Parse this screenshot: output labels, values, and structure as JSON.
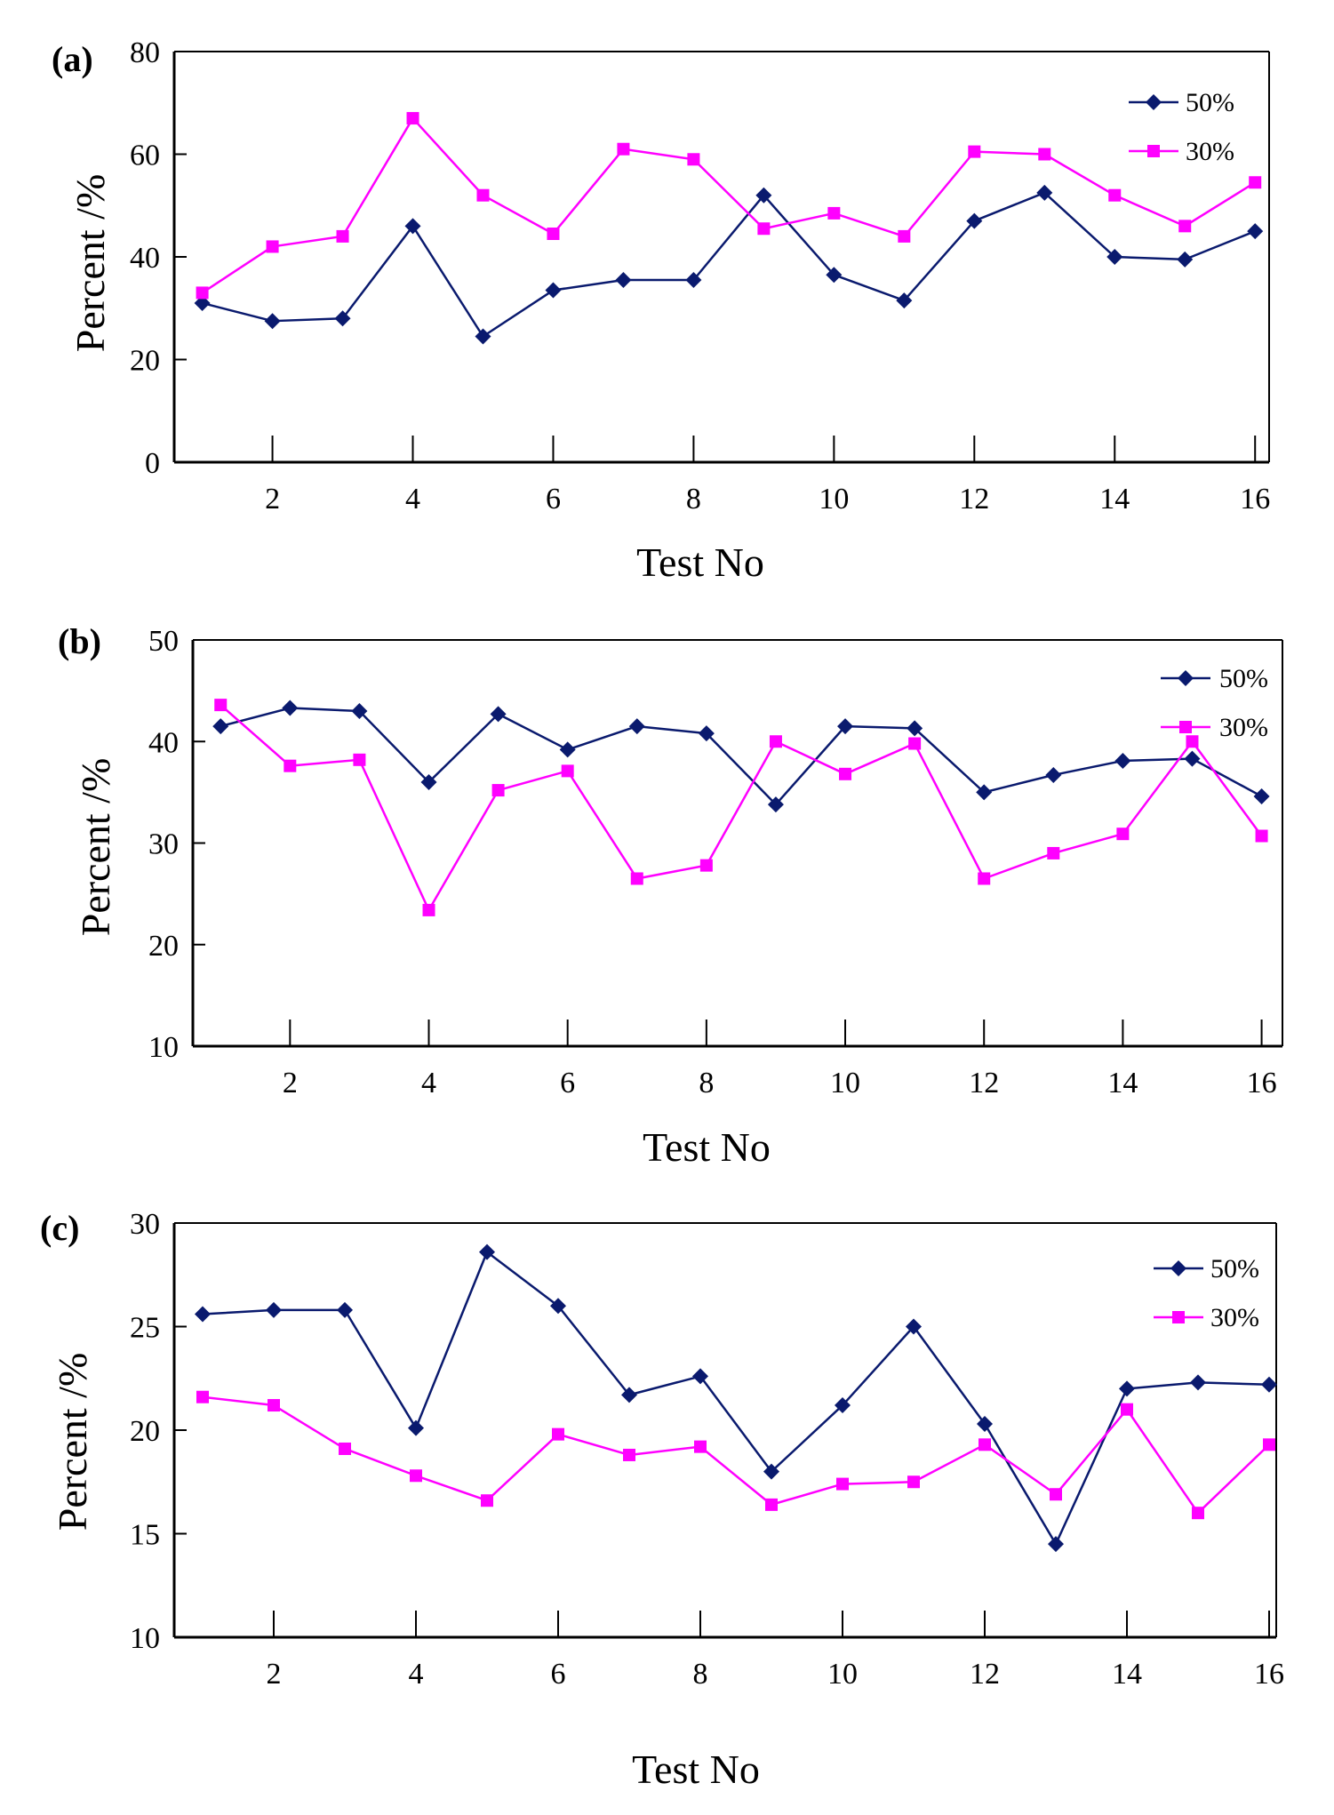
{
  "colors": {
    "series_50": "#0a1a6e",
    "series_30": "#ff00ff",
    "axis": "#000000"
  },
  "chart_data": [
    {
      "type": "line",
      "panel_label": "(a)",
      "xlabel": "Test No",
      "ylabel": "Percent /%",
      "xlim": [
        0.6,
        16.2
      ],
      "ylim": [
        0,
        80
      ],
      "xticks": [
        2,
        4,
        6,
        8,
        10,
        12,
        14,
        16
      ],
      "xtick_labels": [
        "2",
        "4",
        "6",
        "8",
        "10",
        "12",
        "14",
        "16"
      ],
      "yticks": [
        0,
        20,
        40,
        60,
        80
      ],
      "ytick_labels": [
        "0",
        "20",
        "40",
        "60",
        "80"
      ],
      "x": [
        1,
        2,
        3,
        4,
        5,
        6,
        7,
        8,
        9,
        10,
        11,
        12,
        13,
        14,
        15,
        16
      ],
      "series": [
        {
          "name": "50%",
          "marker": "diamond",
          "values": [
            31,
            27.5,
            28,
            46,
            24.5,
            33.5,
            35.5,
            35.5,
            52,
            36.5,
            31.5,
            47,
            52.5,
            40,
            39.5,
            45
          ]
        },
        {
          "name": "30%",
          "marker": "square",
          "values": [
            33,
            42,
            44,
            67,
            52,
            44.5,
            61,
            59,
            45.5,
            48.5,
            44,
            60.5,
            60,
            52,
            46,
            54.5
          ]
        }
      ],
      "legend": {
        "position": "top-right",
        "entries": [
          "50%",
          "30%"
        ]
      }
    },
    {
      "type": "line",
      "panel_label": "(b)",
      "xlabel": "Test No",
      "ylabel": "Percent /%",
      "xlim": [
        0.6,
        16.3
      ],
      "ylim": [
        10,
        50
      ],
      "xticks": [
        2,
        4,
        6,
        8,
        10,
        12,
        14,
        16
      ],
      "xtick_labels": [
        "2",
        "4",
        "6",
        "8",
        "10",
        "12",
        "14",
        "16"
      ],
      "yticks": [
        10,
        20,
        30,
        40,
        50
      ],
      "ytick_labels": [
        "10",
        "20",
        "30",
        "40",
        "50"
      ],
      "x": [
        1,
        2,
        3,
        4,
        5,
        6,
        7,
        8,
        9,
        10,
        11,
        12,
        13,
        14,
        15,
        16
      ],
      "series": [
        {
          "name": "50%",
          "marker": "diamond",
          "values": [
            41.5,
            43.3,
            43,
            36,
            42.7,
            39.2,
            41.5,
            40.8,
            33.8,
            41.5,
            41.3,
            35,
            36.7,
            38.1,
            38.3,
            34.6
          ]
        },
        {
          "name": "30%",
          "marker": "square",
          "values": [
            43.6,
            37.6,
            38.2,
            23.4,
            35.2,
            37.1,
            26.5,
            27.8,
            40,
            36.8,
            39.8,
            26.5,
            29,
            30.9,
            40,
            30.7
          ]
        }
      ],
      "legend": {
        "position": "top-right",
        "entries": [
          "50%",
          "30%"
        ]
      }
    },
    {
      "type": "line",
      "panel_label": "(c)",
      "xlabel": "Test No",
      "ylabel": "Percent /%",
      "xlim": [
        0.6,
        16.1
      ],
      "ylim": [
        10,
        30
      ],
      "xticks": [
        2,
        4,
        6,
        8,
        10,
        12,
        14,
        16
      ],
      "xtick_labels": [
        "2",
        "4",
        "6",
        "8",
        "10",
        "12",
        "14",
        "16"
      ],
      "yticks": [
        10,
        15,
        20,
        25,
        30
      ],
      "ytick_labels": [
        "10",
        "15",
        "20",
        "25",
        "30"
      ],
      "x": [
        1,
        2,
        3,
        4,
        5,
        6,
        7,
        8,
        9,
        10,
        11,
        12,
        13,
        14,
        15,
        16
      ],
      "series": [
        {
          "name": "50%",
          "marker": "diamond",
          "values": [
            25.6,
            25.8,
            25.8,
            20.1,
            28.6,
            26,
            21.7,
            22.6,
            18,
            21.2,
            25,
            20.3,
            14.5,
            22,
            22.3,
            22.2
          ]
        },
        {
          "name": "30%",
          "marker": "square",
          "values": [
            21.6,
            21.2,
            19.1,
            17.8,
            16.6,
            19.8,
            18.8,
            19.2,
            16.4,
            17.4,
            17.5,
            19.3,
            16.9,
            21,
            16,
            19.3
          ]
        }
      ],
      "legend": {
        "position": "top-right",
        "entries": [
          "50%",
          "30%"
        ]
      }
    }
  ]
}
